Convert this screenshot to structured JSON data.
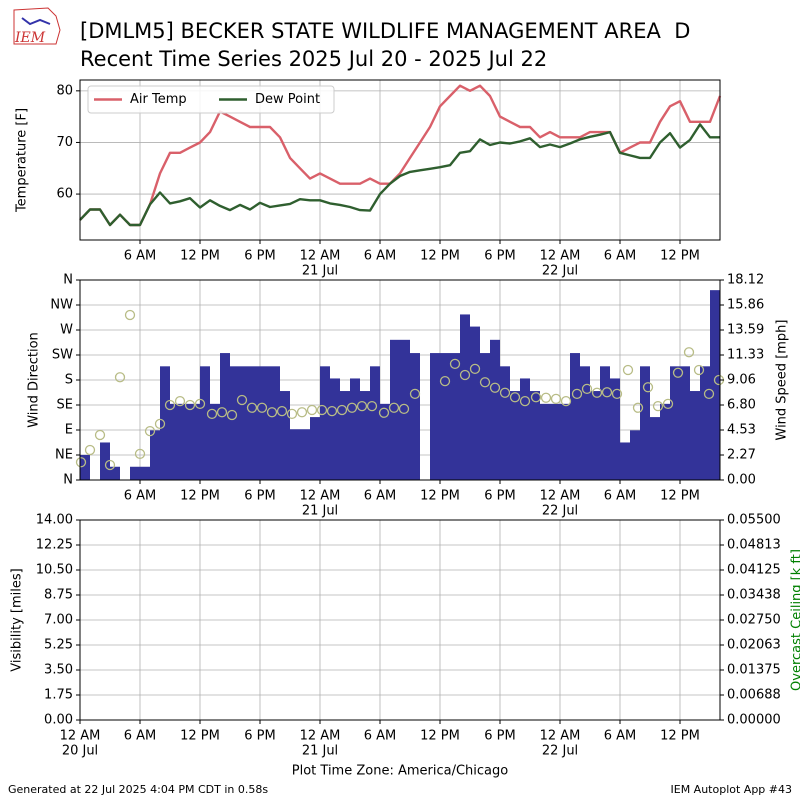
{
  "header": {
    "title": "[DMLM5] BECKER STATE WILDLIFE MANAGEMENT AREA  D",
    "subtitle": "Recent Time Series 2025 Jul 20 - 2025 Jul 22",
    "logo": "IEM"
  },
  "footer": {
    "generated": "Generated at 22 Jul 2025 4:04 PM CDT in 0.58s",
    "app": "IEM Autoplot App #43",
    "xlabel": "Plot Time Zone: America/Chicago"
  },
  "chart_data": [
    {
      "type": "line",
      "ylabel": "Temperature [F]",
      "xlim": [
        0,
        64
      ],
      "ylim": [
        51.1,
        82.1
      ],
      "yticks": [
        60,
        70,
        80
      ],
      "grid": true,
      "legend": "upper left",
      "xticks": [
        {
          "value": 6,
          "label": "6 AM"
        },
        {
          "value": 12,
          "label": "12 PM"
        },
        {
          "value": 18,
          "label": "6 PM"
        },
        {
          "value": 24,
          "label": "12 AM",
          "sublabel": "21 Jul"
        },
        {
          "value": 30,
          "label": "6 AM"
        },
        {
          "value": 36,
          "label": "12 PM"
        },
        {
          "value": 42,
          "label": "6 PM"
        },
        {
          "value": 48,
          "label": "12 AM",
          "sublabel": "22 Jul"
        },
        {
          "value": 54,
          "label": "6 AM"
        },
        {
          "value": 60,
          "label": "12 PM"
        }
      ],
      "x": [
        0,
        1,
        2,
        3,
        4,
        5,
        6,
        7,
        8,
        9,
        10,
        11,
        12,
        13,
        14,
        15,
        16,
        17,
        18,
        19,
        20,
        21,
        22,
        23,
        24,
        25,
        26,
        27,
        28,
        29,
        30,
        31,
        32,
        33,
        34,
        35,
        36,
        37,
        38,
        39,
        40,
        41,
        42,
        43,
        44,
        45,
        46,
        47,
        48,
        49,
        50,
        51,
        52,
        53,
        54,
        55,
        56,
        57,
        58,
        59,
        60,
        61,
        62,
        63,
        64
      ],
      "series": [
        {
          "name": "Air Temp",
          "color": "#d9606a",
          "values": [
            55,
            57,
            57,
            54,
            56,
            54,
            54,
            58,
            64,
            68,
            68,
            69,
            70,
            72,
            76,
            75,
            74,
            73,
            73,
            73,
            71,
            67,
            65,
            63,
            64,
            63,
            62,
            62,
            62,
            63,
            62,
            62,
            64,
            67,
            70,
            73,
            77,
            79,
            81,
            80,
            81,
            79,
            75,
            74,
            73,
            73,
            71,
            72,
            71,
            71,
            71,
            72,
            72,
            72,
            68,
            69,
            70,
            70,
            74,
            77,
            78,
            74,
            74,
            74,
            79
          ]
        },
        {
          "name": "Dew Point",
          "color": "#2f5f2f",
          "values": [
            55,
            57,
            57,
            54,
            56,
            54,
            54,
            58,
            60.3,
            58.2,
            58.6,
            59.2,
            57.4,
            58.8,
            57.7,
            56.9,
            57.9,
            57,
            58.3,
            57.5,
            57.8,
            58.1,
            59,
            58.8,
            58.8,
            58.2,
            57.9,
            57.5,
            56.9,
            56.8,
            60,
            62,
            63.5,
            64.3,
            64.6,
            64.9,
            65.2,
            65.6,
            68,
            68.3,
            70.6,
            69.5,
            70,
            69.8,
            70.2,
            70.8,
            69.1,
            69.6,
            69.1,
            69.8,
            70.6,
            71.1,
            71.5,
            72,
            68,
            67.5,
            67,
            67,
            70,
            71.8,
            69,
            70.5,
            73.5,
            71,
            71
          ]
        }
      ]
    },
    {
      "type": "bar",
      "ylabel": "Wind Direction",
      "y2label": "Wind Speed [mph]",
      "xlim": [
        0,
        64
      ],
      "ylim": [
        0,
        360
      ],
      "y2lim": [
        0,
        18.12
      ],
      "grid": true,
      "yticks": [
        {
          "value": 0,
          "label": "N"
        },
        {
          "value": 45,
          "label": "NE"
        },
        {
          "value": 90,
          "label": "E"
        },
        {
          "value": 135,
          "label": "SE"
        },
        {
          "value": 180,
          "label": "S"
        },
        {
          "value": 225,
          "label": "SW"
        },
        {
          "value": 270,
          "label": "W"
        },
        {
          "value": 315,
          "label": "NW"
        },
        {
          "value": 360,
          "label": "N"
        }
      ],
      "y2ticks": [
        {
          "value": 0,
          "label": "0.00"
        },
        {
          "value": 2.265,
          "label": "2.27"
        },
        4.53,
        {
          "value": 6.795,
          "label": "6.80"
        },
        9.06,
        {
          "value": 11.325,
          "label": "11.33"
        },
        13.59,
        {
          "value": 15.855,
          "label": "15.86"
        },
        18.12
      ],
      "xticks": [
        {
          "value": 6,
          "label": "6 AM"
        },
        {
          "value": 12,
          "label": "12 PM"
        },
        {
          "value": 18,
          "label": "6 PM"
        },
        {
          "value": 24,
          "label": "12 AM",
          "sublabel": "21 Jul"
        },
        {
          "value": 30,
          "label": "6 AM"
        },
        {
          "value": 36,
          "label": "12 PM"
        },
        {
          "value": 42,
          "label": "6 PM"
        },
        {
          "value": 48,
          "label": "12 AM",
          "sublabel": "22 Jul"
        },
        {
          "value": 54,
          "label": "6 AM"
        },
        {
          "value": 60,
          "label": "12 PM"
        }
      ],
      "series": [
        {
          "kind": "bar",
          "axis": "y2",
          "color": "#333399",
          "x": [
            0,
            1,
            2,
            3,
            4,
            5,
            6,
            7,
            8,
            9,
            10,
            11,
            12,
            13,
            14,
            15,
            16,
            17,
            18,
            19,
            20,
            21,
            22,
            23,
            24,
            25,
            26,
            27,
            28,
            29,
            30,
            31,
            32,
            33,
            34,
            35,
            36,
            37,
            38,
            39,
            40,
            41,
            42,
            43,
            44,
            45,
            46,
            47,
            48,
            49,
            50,
            51,
            52,
            53,
            54,
            55,
            56,
            57,
            58,
            59,
            60,
            61,
            62,
            63
          ],
          "values": [
            2.27,
            0,
            3.4,
            1.2,
            0,
            1.2,
            1.2,
            4.5,
            10.3,
            6.9,
            6.9,
            6.9,
            10.3,
            6.9,
            11.5,
            10.3,
            10.3,
            10.3,
            10.3,
            10.3,
            8.06,
            4.6,
            4.6,
            5.7,
            10.3,
            9.2,
            8.06,
            9.2,
            8.06,
            10.3,
            6.9,
            12.7,
            12.7,
            11.5,
            0,
            11.5,
            11.5,
            11.5,
            15,
            13.9,
            11.5,
            12.7,
            10.3,
            8.06,
            9.2,
            8.06,
            6.9,
            6.9,
            6.9,
            11.5,
            10.3,
            8.06,
            10.3,
            9.2,
            3.4,
            4.5,
            10.3,
            5.7,
            6.9,
            10.3,
            10.3,
            8.06,
            10.3,
            17.2
          ]
        },
        {
          "kind": "scatter",
          "color": "#b8bc86",
          "x": [
            0.1,
            1,
            2,
            3,
            4,
            5,
            6,
            7,
            8,
            9,
            10,
            11,
            12,
            13.2,
            14.2,
            15.2,
            16.2,
            17.2,
            18.2,
            19.2,
            20.2,
            21.2,
            22.2,
            23.2,
            24.2,
            25.2,
            26.2,
            27.2,
            28.2,
            29.2,
            30.4,
            31.4,
            32.4,
            33.5,
            36.5,
            37.5,
            38.5,
            39.5,
            40.5,
            41.5,
            42.5,
            43.5,
            44.5,
            45.6,
            46.6,
            47.6,
            48.6,
            49.7,
            50.7,
            51.7,
            52.7,
            53.7,
            54.8,
            55.8,
            56.8,
            57.8,
            58.8,
            59.8,
            60.9,
            61.9,
            62.9,
            63.9
          ],
          "values": [
            32,
            54,
            81,
            27,
            185,
            297,
            47,
            88,
            101,
            135,
            142,
            135,
            137,
            119,
            122,
            117,
            144,
            130,
            130,
            122,
            124,
            119,
            122,
            126,
            126,
            124,
            126,
            130,
            133,
            133,
            121,
            130,
            128,
            155,
            178,
            209,
            189,
            200,
            176,
            166,
            157,
            149,
            142,
            149,
            148,
            146,
            142,
            155,
            164,
            157,
            158,
            155,
            198,
            130,
            167,
            133,
            137,
            193,
            230,
            198,
            155,
            180
          ]
        }
      ]
    },
    {
      "type": "line",
      "ylabel": "Visibility [miles]",
      "y2label": "Overcast Ceiling [k ft]",
      "y2color": "#008000",
      "xlim": [
        0,
        64
      ],
      "ylim": [
        0,
        14
      ],
      "y2lim": [
        0,
        0.055
      ],
      "grid": true,
      "yticks": [
        {
          "value": 0,
          "label": "0.00"
        },
        1.75,
        {
          "value": 3.5,
          "label": "3.50"
        },
        5.25,
        {
          "value": 7,
          "label": "7.00"
        },
        8.75,
        {
          "value": 10.5,
          "label": "10.50"
        },
        12.25,
        {
          "value": 14,
          "label": "14.00"
        }
      ],
      "y2ticks": [
        {
          "value": 0,
          "label": "0.00000"
        },
        {
          "value": 0.006875,
          "label": "0.00688"
        },
        0.01375,
        {
          "value": 0.020625,
          "label": "0.02063"
        },
        {
          "value": 0.0275,
          "label": "0.02750"
        },
        {
          "value": 0.034375,
          "label": "0.03438"
        },
        0.04125,
        {
          "value": 0.048125,
          "label": "0.04813"
        },
        {
          "value": 0.055,
          "label": "0.05500"
        }
      ],
      "xticks": [
        {
          "value": 0,
          "label": "12 AM",
          "sublabel": "20 Jul"
        },
        {
          "value": 6,
          "label": "6 AM"
        },
        {
          "value": 12,
          "label": "12 PM"
        },
        {
          "value": 18,
          "label": "6 PM"
        },
        {
          "value": 24,
          "label": "12 AM",
          "sublabel": "21 Jul"
        },
        {
          "value": 30,
          "label": "6 AM"
        },
        {
          "value": 36,
          "label": "12 PM"
        },
        {
          "value": 42,
          "label": "6 PM"
        },
        {
          "value": 48,
          "label": "12 AM",
          "sublabel": "22 Jul"
        },
        {
          "value": 54,
          "label": "6 AM"
        },
        {
          "value": 60,
          "label": "12 PM"
        }
      ],
      "series": []
    }
  ]
}
